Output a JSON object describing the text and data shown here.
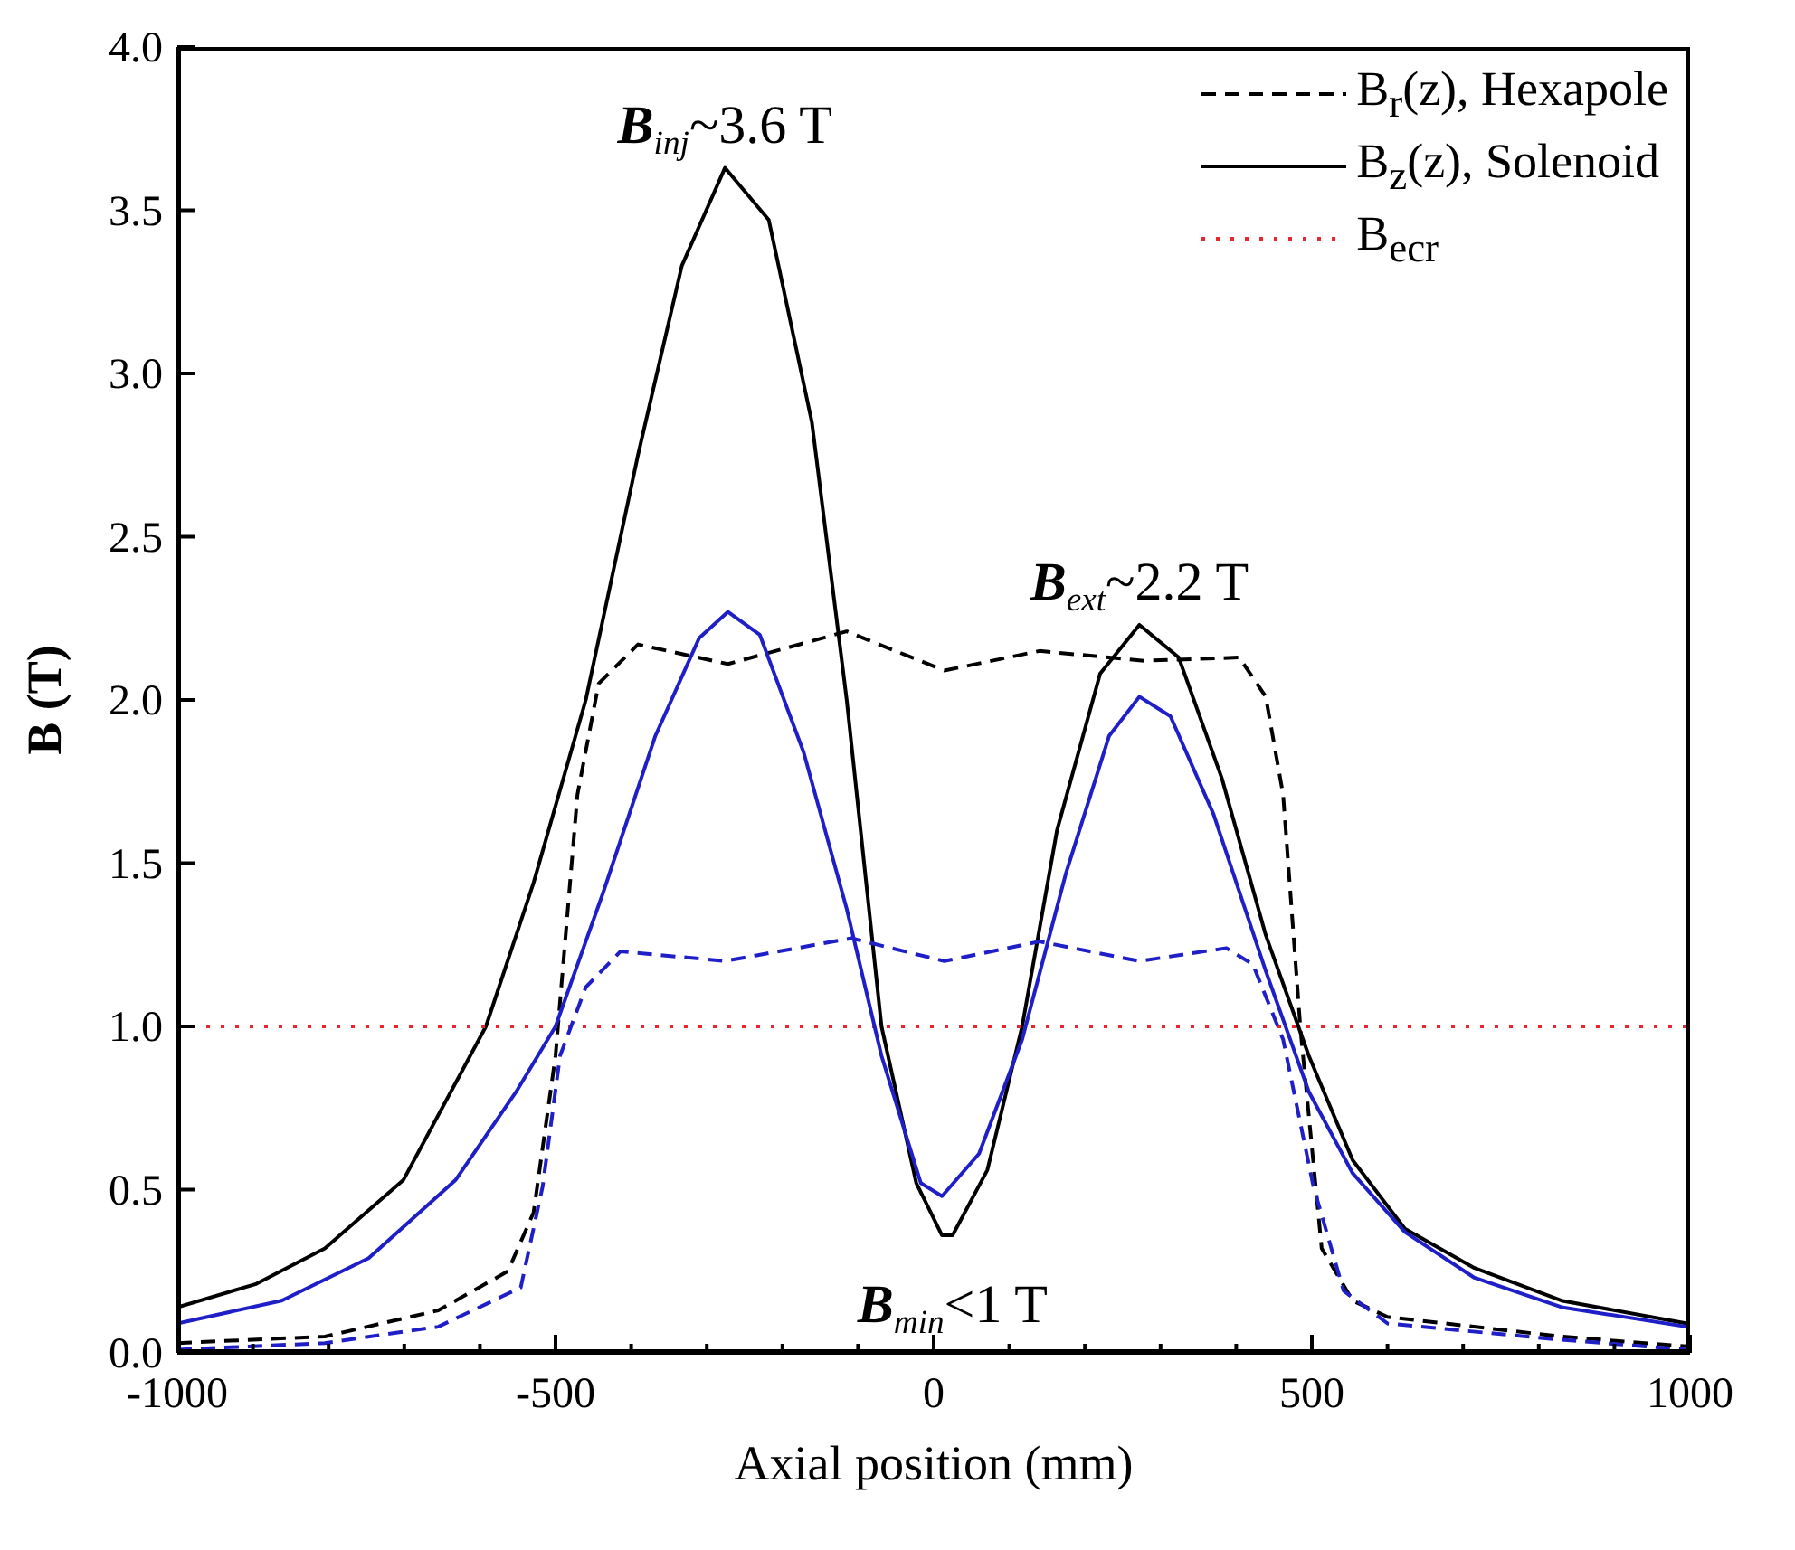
{
  "chart_data": {
    "type": "line",
    "xlabel": "Axial position (mm)",
    "ylabel": "B (T)",
    "xlim": [
      -1000,
      1000
    ],
    "ylim": [
      0,
      4
    ],
    "xticks": [
      -1000,
      {
        "value": -900,
        "label": null
      },
      {
        "value": -800,
        "label": null
      },
      {
        "value": -700,
        "label": null
      },
      {
        "value": -600,
        "label": null
      },
      -500,
      {
        "value": -400,
        "label": null
      },
      {
        "value": -300,
        "label": null
      },
      {
        "value": -200,
        "label": null
      },
      {
        "value": -100,
        "label": null
      },
      0,
      {
        "value": 100,
        "label": null
      },
      {
        "value": 200,
        "label": null
      },
      {
        "value": 300,
        "label": null
      },
      {
        "value": 400,
        "label": null
      },
      500,
      {
        "value": 600,
        "label": null
      },
      {
        "value": 700,
        "label": null
      },
      {
        "value": 800,
        "label": null
      },
      {
        "value": 900,
        "label": null
      },
      1000
    ],
    "yticks": [
      {
        "value": 0,
        "label": "0.0"
      },
      {
        "value": 0.5,
        "label": "0.5"
      },
      {
        "value": 1,
        "label": "1.0"
      },
      {
        "value": 1.5,
        "label": "1.5"
      },
      {
        "value": 2,
        "label": "2.0"
      },
      {
        "value": 2.5,
        "label": "2.5"
      },
      {
        "value": 3,
        "label": "3.0"
      },
      {
        "value": 3.5,
        "label": "3.5"
      },
      {
        "value": 4,
        "label": "4.0"
      }
    ],
    "grid": false,
    "legend": "top right",
    "marker": "none",
    "series": [
      {
        "name": "B$_{r}$(z), Hexapole",
        "color": "#000000",
        "line_style": "dashed",
        "x": [
          -1000,
          -805,
          -655,
          -563,
          -529,
          -500,
          -471,
          -443,
          -391,
          -272,
          -115,
          14,
          140,
          278,
          404,
          439,
          462,
          485,
          513,
          554,
          600,
          830,
          996
        ],
        "values": [
          0.03,
          0.05,
          0.13,
          0.25,
          0.43,
          0.91,
          1.71,
          2.05,
          2.17,
          2.11,
          2.21,
          2.09,
          2.15,
          2.12,
          2.13,
          2.01,
          1.71,
          0.99,
          0.32,
          0.16,
          0.11,
          0.05,
          0.02
        ]
      },
      {
        "name": "B$_{z}$(z), Solenoid",
        "color": "#000000",
        "line_style": "solid",
        "x": [
          -1000,
          -897,
          -805,
          -701,
          -592,
          -529,
          -460,
          -391,
          -333,
          -276,
          -218,
          -161,
          -115,
          -69,
          -23,
          11,
          25,
          71,
          117,
          163,
          220,
          272,
          324,
          381,
          439,
          496,
          554,
          623,
          715,
          830,
          996
        ],
        "values": [
          0.14,
          0.21,
          0.32,
          0.53,
          1.0,
          1.44,
          2.0,
          2.75,
          3.33,
          3.63,
          3.47,
          2.85,
          2.0,
          1.0,
          0.52,
          0.36,
          0.36,
          0.56,
          1.0,
          1.6,
          2.08,
          2.23,
          2.13,
          1.76,
          1.28,
          0.91,
          0.59,
          0.38,
          0.26,
          0.16,
          0.09
        ]
      },
      {
        "name": "B$_{ecr}$",
        "color": "#e8262b",
        "line_style": "dotted",
        "x": [
          -1000,
          1000
        ],
        "values": [
          1,
          1
        ]
      },
      {
        "color": "#1f1fc8",
        "line_style": "dashed",
        "x": [
          -1000,
          -805,
          -655,
          -546,
          -517,
          -494,
          -460,
          -414,
          -276,
          -109,
          14,
          140,
          272,
          387,
          422,
          462,
          502,
          542,
          600,
          830,
          996
        ],
        "values": [
          0.01,
          0.03,
          0.08,
          0.2,
          0.51,
          0.91,
          1.12,
          1.23,
          1.2,
          1.27,
          1.2,
          1.26,
          1.2,
          1.24,
          1.19,
          0.96,
          0.51,
          0.19,
          0.09,
          0.04,
          0.01
        ]
      },
      {
        "color": "#1f1fc8",
        "line_style": "solid",
        "x": [
          -1000,
          -862,
          -747,
          -632,
          -552,
          -500,
          -437,
          -368,
          -310,
          -272,
          -230,
          -172,
          -115,
          -69,
          -17,
          11,
          60,
          117,
          175,
          232,
          272,
          313,
          370,
          439,
          496,
          554,
          623,
          715,
          830,
          996
        ],
        "values": [
          0.09,
          0.16,
          0.29,
          0.53,
          0.8,
          1.0,
          1.41,
          1.89,
          2.19,
          2.27,
          2.2,
          1.84,
          1.36,
          0.91,
          0.52,
          0.48,
          0.61,
          0.96,
          1.47,
          1.89,
          2.01,
          1.95,
          1.65,
          1.17,
          0.8,
          0.55,
          0.37,
          0.23,
          0.14,
          0.08
        ]
      }
    ],
    "annotations": [
      {
        "text": "B$_{inj}$~3.6 T",
        "x": -276,
        "y": 3.63
      },
      {
        "text": "B$_{ext}$~2.2 T",
        "x": 272,
        "y": 2.23
      },
      {
        "text": "B$_{min}$<1 T",
        "x": 25,
        "y": 0.36
      }
    ]
  }
}
